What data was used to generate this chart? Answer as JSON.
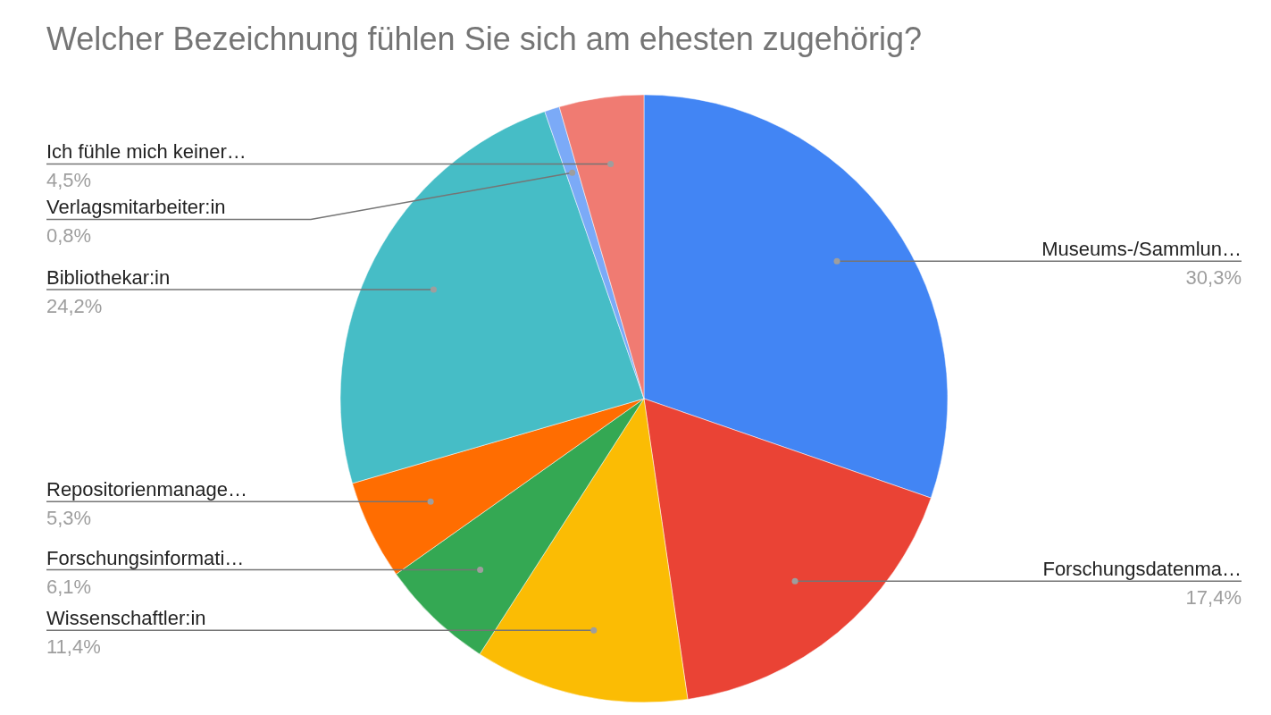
{
  "chart_data": {
    "type": "pie",
    "title": "Welcher Bezeichnung fühlen Sie sich am ehesten zugehörig?",
    "categories": [
      "Museums-/Sammlun…",
      "Forschungsdatenma…",
      "Wissenschaftler:in",
      "Forschungsinformati…",
      "Repositorienmanage…",
      "Bibliothekar:in",
      "Verlagsmitarbeiter:in",
      "Ich fühle mich keiner…"
    ],
    "values": [
      30.3,
      17.4,
      11.4,
      6.1,
      5.3,
      24.2,
      0.8,
      4.5
    ],
    "colors": [
      "#4285f4",
      "#ea4335",
      "#fbbc04",
      "#34a853",
      "#ff6d01",
      "#46bdc6",
      "#7baaf7",
      "#f07b72"
    ],
    "value_labels": [
      "30,3%",
      "17,4%",
      "11,4%",
      "6,1%",
      "5,3%",
      "24,2%",
      "0,8%",
      "4,5%"
    ]
  }
}
